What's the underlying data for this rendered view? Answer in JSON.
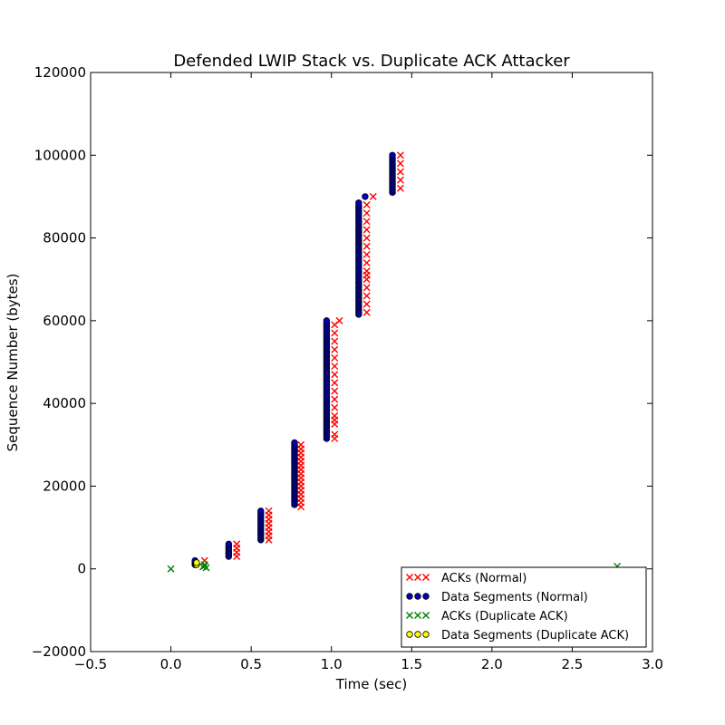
{
  "chart_data": {
    "type": "scatter",
    "title": "Defended LWIP Stack vs. Duplicate ACK Attacker",
    "xlabel": "Time (sec)",
    "ylabel": "Sequence Number (bytes)",
    "xlim": [
      -0.5,
      3.0
    ],
    "ylim": [
      -20000,
      120000
    ],
    "xticks": [
      -0.5,
      0.0,
      0.5,
      1.0,
      1.5,
      2.0,
      2.5,
      3.0
    ],
    "xtick_labels": [
      "−0.5",
      "0.0",
      "0.5",
      "1.0",
      "1.5",
      "2.0",
      "2.5",
      "3.0"
    ],
    "yticks": [
      -20000,
      0,
      20000,
      40000,
      60000,
      80000,
      100000,
      120000
    ],
    "ytick_labels": [
      "−20000",
      "0",
      "20000",
      "40000",
      "60000",
      "80000",
      "100000",
      "120000"
    ],
    "grid": false,
    "legend_position": "lower-right",
    "series": [
      {
        "name": "ACKs (Normal)",
        "marker": "x",
        "color": "#ff0000",
        "points": [
          [
            0.21,
            2000
          ],
          [
            0.41,
            3000
          ],
          [
            0.41,
            4000
          ],
          [
            0.41,
            5000
          ],
          [
            0.41,
            6000
          ],
          [
            0.61,
            7000
          ],
          [
            0.61,
            8000
          ],
          [
            0.61,
            9000
          ],
          [
            0.61,
            10000
          ],
          [
            0.61,
            11000
          ],
          [
            0.61,
            12000
          ],
          [
            0.61,
            13000
          ],
          [
            0.61,
            14000
          ],
          [
            0.81,
            15000
          ],
          [
            0.81,
            16000
          ],
          [
            0.81,
            17000
          ],
          [
            0.81,
            18000
          ],
          [
            0.81,
            19000
          ],
          [
            0.81,
            20000
          ],
          [
            0.81,
            21000
          ],
          [
            0.81,
            22000
          ],
          [
            0.81,
            23000
          ],
          [
            0.81,
            24000
          ],
          [
            0.81,
            25000
          ],
          [
            0.81,
            26000
          ],
          [
            0.81,
            27000
          ],
          [
            0.81,
            28000
          ],
          [
            0.81,
            29000
          ],
          [
            0.81,
            30000
          ],
          [
            1.02,
            31500
          ],
          [
            1.02,
            32500
          ],
          [
            1.02,
            35000
          ],
          [
            1.02,
            36000
          ],
          [
            1.02,
            37000
          ],
          [
            1.02,
            39000
          ],
          [
            1.02,
            41000
          ],
          [
            1.02,
            43000
          ],
          [
            1.02,
            45000
          ],
          [
            1.02,
            47000
          ],
          [
            1.02,
            49000
          ],
          [
            1.02,
            51000
          ],
          [
            1.02,
            53000
          ],
          [
            1.02,
            55000
          ],
          [
            1.02,
            57000
          ],
          [
            1.02,
            59000
          ],
          [
            1.05,
            60000
          ],
          [
            1.22,
            62000
          ],
          [
            1.22,
            64000
          ],
          [
            1.22,
            66000
          ],
          [
            1.22,
            68000
          ],
          [
            1.22,
            70000
          ],
          [
            1.22,
            71000
          ],
          [
            1.22,
            72000
          ],
          [
            1.22,
            74000
          ],
          [
            1.22,
            76000
          ],
          [
            1.22,
            78000
          ],
          [
            1.22,
            80000
          ],
          [
            1.22,
            82000
          ],
          [
            1.22,
            84000
          ],
          [
            1.22,
            86000
          ],
          [
            1.22,
            88000
          ],
          [
            1.26,
            90000
          ],
          [
            1.43,
            92000
          ],
          [
            1.43,
            94000
          ],
          [
            1.43,
            96000
          ],
          [
            1.43,
            98000
          ],
          [
            1.43,
            100000
          ]
        ]
      },
      {
        "name": "Data Segments (Normal)",
        "marker": "o",
        "color": "#0000bf",
        "ranges": [
          {
            "x": 0.15,
            "from": 1000,
            "to": 2000,
            "step": 500
          },
          {
            "x": 0.36,
            "from": 3000,
            "to": 6000,
            "step": 500
          },
          {
            "x": 0.56,
            "from": 7000,
            "to": 14000,
            "step": 500
          },
          {
            "x": 0.77,
            "from": 15500,
            "to": 30500,
            "step": 500
          },
          {
            "x": 0.97,
            "from": 31500,
            "to": 60000,
            "step": 500
          },
          {
            "x": 1.17,
            "from": 61500,
            "to": 88500,
            "step": 500
          },
          {
            "x": 1.38,
            "from": 91000,
            "to": 100000,
            "step": 500
          }
        ],
        "points": [
          [
            1.21,
            90000
          ]
        ]
      },
      {
        "name": "ACKs (Duplicate ACK)",
        "marker": "x",
        "color": "#008000",
        "points": [
          [
            0.0,
            0
          ],
          [
            0.2,
            500
          ],
          [
            0.21,
            1000
          ],
          [
            0.22,
            300
          ],
          [
            0.21,
            700
          ],
          [
            2.78,
            600
          ]
        ]
      },
      {
        "name": "Data Segments (Duplicate ACK)",
        "marker": "o",
        "color": "#ffff00",
        "points": [
          [
            0.16,
            1000
          ],
          [
            0.16,
            1500
          ]
        ]
      }
    ]
  }
}
